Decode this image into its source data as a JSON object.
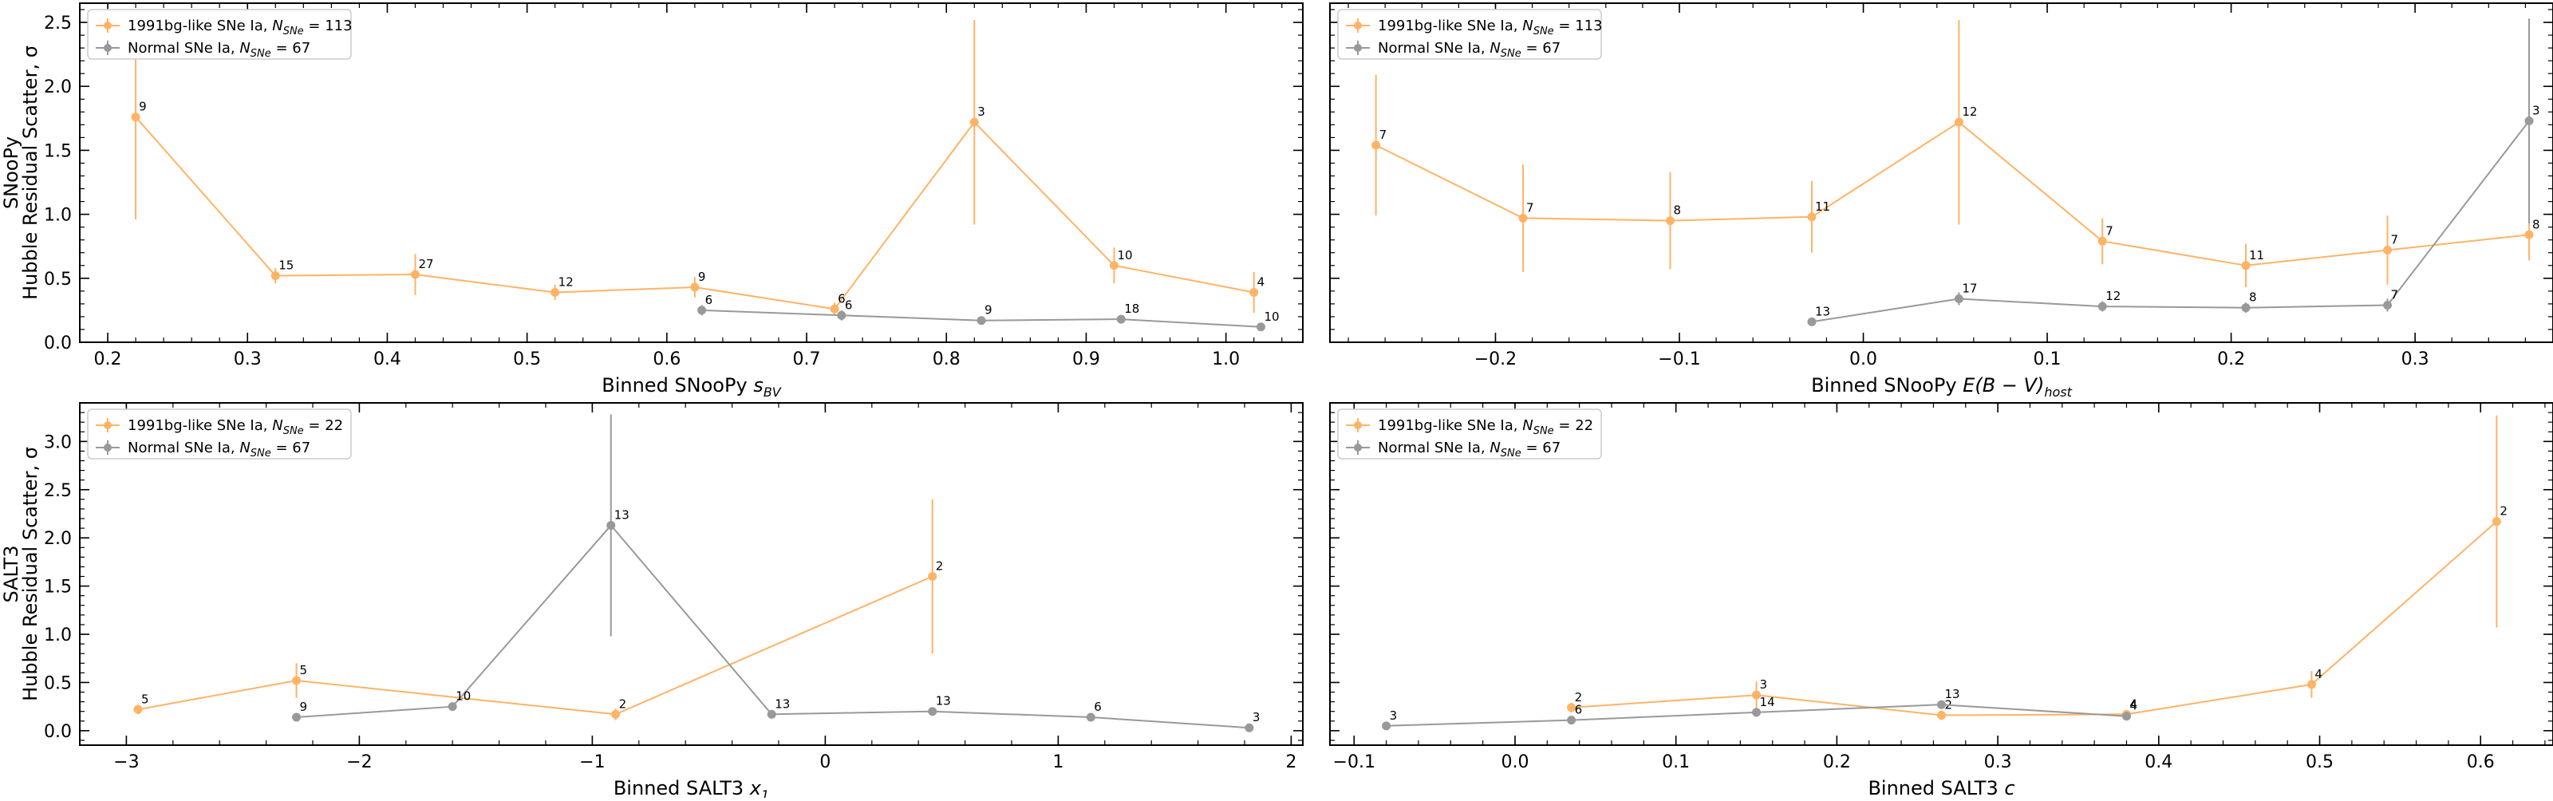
{
  "figure": {
    "row_labels": [
      {
        "group": "SNooPy",
        "label": "Hubble Residual Scatter, σ"
      },
      {
        "group": "SALT3",
        "label": "Hubble Residual Scatter, σ"
      }
    ]
  },
  "colors": {
    "bg91": "#ffb366",
    "normal": "#999999",
    "axis": "#000000"
  },
  "chart_data": [
    {
      "type": "line",
      "id": "p1",
      "xlabel": {
        "main": "Binned SNooPy ",
        "var": "s",
        "sub": "BV"
      },
      "ylabel_show": true,
      "xlim": [
        0.18,
        1.055
      ],
      "ylim": [
        0.0,
        2.65
      ],
      "xticks": [
        0.2,
        0.3,
        0.4,
        0.5,
        0.6,
        0.7,
        0.8,
        0.9,
        1.0
      ],
      "xtick_labels": [
        "0.2",
        "0.3",
        "0.4",
        "0.5",
        "0.6",
        "0.7",
        "0.8",
        "0.9",
        "1.0"
      ],
      "yticks": [
        0.0,
        0.5,
        1.0,
        1.5,
        2.0,
        2.5
      ],
      "ytick_labels": [
        "0.0",
        "0.5",
        "1.0",
        "1.5",
        "2.0",
        "2.5"
      ],
      "legend": {
        "position": "top-left",
        "entries": [
          {
            "series": 0,
            "text": "1991bg-like SNe Ia, ",
            "nvar": "N",
            "nsub": "SNe",
            "nval": " = 113"
          },
          {
            "series": 1,
            "text": "Normal SNe Ia, ",
            "nvar": "N",
            "nsub": "SNe",
            "nval": " = 67"
          }
        ]
      },
      "series": [
        {
          "name": "1991bg-like SNe Ia",
          "color": "#ffb366",
          "x": [
            0.22,
            0.32,
            0.42,
            0.52,
            0.62,
            0.72,
            0.82,
            0.92,
            1.02
          ],
          "y": [
            1.76,
            0.52,
            0.53,
            0.39,
            0.43,
            0.26,
            1.72,
            0.6,
            0.39
          ],
          "err": [
            0.8,
            0.06,
            0.16,
            0.06,
            0.08,
            0.05,
            0.8,
            0.14,
            0.16
          ],
          "labels": [
            "9",
            "15",
            "27",
            "12",
            "9",
            "6",
            "3",
            "10",
            "4"
          ]
        },
        {
          "name": "Normal SNe Ia",
          "color": "#999999",
          "x": [
            0.625,
            0.725,
            0.825,
            0.925,
            1.025
          ],
          "y": [
            0.25,
            0.21,
            0.17,
            0.18,
            0.12
          ],
          "err": [
            0.04,
            0.04,
            0.03,
            0.03,
            0.02
          ],
          "labels": [
            "6",
            "6",
            "9",
            "18",
            "10"
          ]
        }
      ]
    },
    {
      "type": "line",
      "id": "p2",
      "xlabel": {
        "main": "Binned SNooPy ",
        "var": "E(B − V)",
        "sub": "host"
      },
      "ylabel_show": false,
      "xlim": [
        -0.29,
        0.375
      ],
      "ylim": [
        0.0,
        2.65
      ],
      "xticks": [
        -0.2,
        -0.1,
        0.0,
        0.1,
        0.2,
        0.3
      ],
      "xtick_labels": [
        "−0.2",
        "−0.1",
        "0.0",
        "0.1",
        "0.2",
        "0.3"
      ],
      "yticks": [
        0.0,
        0.5,
        1.0,
        1.5,
        2.0,
        2.5
      ],
      "ytick_labels": [],
      "legend": {
        "position": "top-left",
        "entries": [
          {
            "series": 0,
            "text": "1991bg-like SNe Ia, ",
            "nvar": "N",
            "nsub": "SNe",
            "nval": " = 113"
          },
          {
            "series": 1,
            "text": "Normal SNe Ia, ",
            "nvar": "N",
            "nsub": "SNe",
            "nval": " = 67"
          }
        ]
      },
      "series": [
        {
          "name": "1991bg-like SNe Ia",
          "color": "#ffb366",
          "x": [
            -0.265,
            -0.185,
            -0.105,
            -0.028,
            0.052,
            0.13,
            0.208,
            0.285,
            0.362
          ],
          "y": [
            1.54,
            0.97,
            0.95,
            0.98,
            1.72,
            0.79,
            0.6,
            0.72,
            0.84
          ],
          "err": [
            0.55,
            0.42,
            0.38,
            0.28,
            0.8,
            0.18,
            0.17,
            0.27,
            0.2
          ],
          "labels": [
            "7",
            "7",
            "8",
            "11",
            "12",
            "7",
            "11",
            "7",
            "8"
          ]
        },
        {
          "name": "Normal SNe Ia",
          "color": "#999999",
          "x": [
            -0.028,
            0.052,
            0.13,
            0.208,
            0.285,
            0.362
          ],
          "y": [
            0.16,
            0.34,
            0.28,
            0.27,
            0.29,
            1.73
          ],
          "err": [
            0.03,
            0.05,
            0.04,
            0.04,
            0.05,
            0.8
          ],
          "labels": [
            "13",
            "17",
            "12",
            "8",
            "7",
            "3"
          ]
        }
      ]
    },
    {
      "type": "line",
      "id": "p3",
      "xlabel": {
        "main": "Binned SALT3 ",
        "var": "x",
        "sub": "1"
      },
      "ylabel_show": true,
      "xlim": [
        -3.2,
        2.05
      ],
      "ylim": [
        -0.15,
        3.4
      ],
      "xticks": [
        -3,
        -2,
        -1,
        0,
        1,
        2
      ],
      "xtick_labels": [
        "−3",
        "−2",
        "−1",
        "0",
        "1",
        "2"
      ],
      "yticks": [
        0.0,
        0.5,
        1.0,
        1.5,
        2.0,
        2.5,
        3.0
      ],
      "ytick_labels": [
        "0.0",
        "0.5",
        "1.0",
        "1.5",
        "2.0",
        "2.5",
        "3.0"
      ],
      "legend": {
        "position": "top-left",
        "entries": [
          {
            "series": 0,
            "text": "1991bg-like SNe Ia, ",
            "nvar": "N",
            "nsub": "SNe",
            "nval": " = 22"
          },
          {
            "series": 1,
            "text": "Normal SNe Ia, ",
            "nvar": "N",
            "nsub": "SNe",
            "nval": " = 67"
          }
        ]
      },
      "series": [
        {
          "name": "1991bg-like SNe Ia",
          "color": "#ffb366",
          "x": [
            -2.95,
            -2.27,
            -0.9,
            0.46
          ],
          "y": [
            0.22,
            0.52,
            0.17,
            1.6
          ],
          "err": [
            0.05,
            0.18,
            0.06,
            0.8
          ],
          "labels": [
            "5",
            "5",
            "2",
            "2"
          ]
        },
        {
          "name": "Normal SNe Ia",
          "color": "#999999",
          "x": [
            -2.27,
            -1.6,
            -0.92,
            -0.23,
            0.46,
            1.14,
            1.82
          ],
          "y": [
            0.14,
            0.25,
            2.13,
            0.17,
            0.2,
            0.14,
            0.03
          ],
          "err": [
            0.03,
            0.04,
            1.15,
            0.03,
            0.03,
            0.02,
            0.02
          ],
          "labels": [
            "9",
            "10",
            "13",
            "13",
            "13",
            "6",
            "3"
          ]
        }
      ]
    },
    {
      "type": "line",
      "id": "p4",
      "xlabel": {
        "main": "Binned SALT3 ",
        "var": "c",
        "sub": ""
      },
      "ylabel_show": false,
      "xlim": [
        -0.115,
        0.645
      ],
      "ylim": [
        -0.15,
        3.4
      ],
      "xticks": [
        -0.1,
        0.0,
        0.1,
        0.2,
        0.3,
        0.4,
        0.5,
        0.6
      ],
      "xtick_labels": [
        "−0.1",
        "0.0",
        "0.1",
        "0.2",
        "0.3",
        "0.4",
        "0.5",
        "0.6"
      ],
      "yticks": [
        0.0,
        0.5,
        1.0,
        1.5,
        2.0,
        2.5,
        3.0
      ],
      "ytick_labels": [],
      "legend": {
        "position": "top-left",
        "entries": [
          {
            "series": 0,
            "text": "1991bg-like SNe Ia, ",
            "nvar": "N",
            "nsub": "SNe",
            "nval": " = 22"
          },
          {
            "series": 1,
            "text": "Normal SNe Ia, ",
            "nvar": "N",
            "nsub": "SNe",
            "nval": " = 67"
          }
        ]
      },
      "series": [
        {
          "name": "1991bg-like SNe Ia",
          "color": "#ffb366",
          "x": [
            0.035,
            0.15,
            0.265,
            0.38,
            0.495,
            0.61
          ],
          "y": [
            0.24,
            0.37,
            0.16,
            0.17,
            0.48,
            2.17
          ],
          "err": [
            0.05,
            0.14,
            0.05,
            0.04,
            0.14,
            1.1
          ],
          "labels": [
            "2",
            "3",
            "2",
            "4",
            "4",
            "2"
          ]
        },
        {
          "name": "Normal SNe Ia",
          "color": "#999999",
          "x": [
            -0.08,
            0.035,
            0.15,
            0.265,
            0.38
          ],
          "y": [
            0.05,
            0.11,
            0.19,
            0.27,
            0.15
          ],
          "err": [
            0.02,
            0.02,
            0.03,
            0.04,
            0.03
          ],
          "labels": [
            "3",
            "6",
            "14",
            "13",
            "4"
          ]
        }
      ]
    }
  ]
}
